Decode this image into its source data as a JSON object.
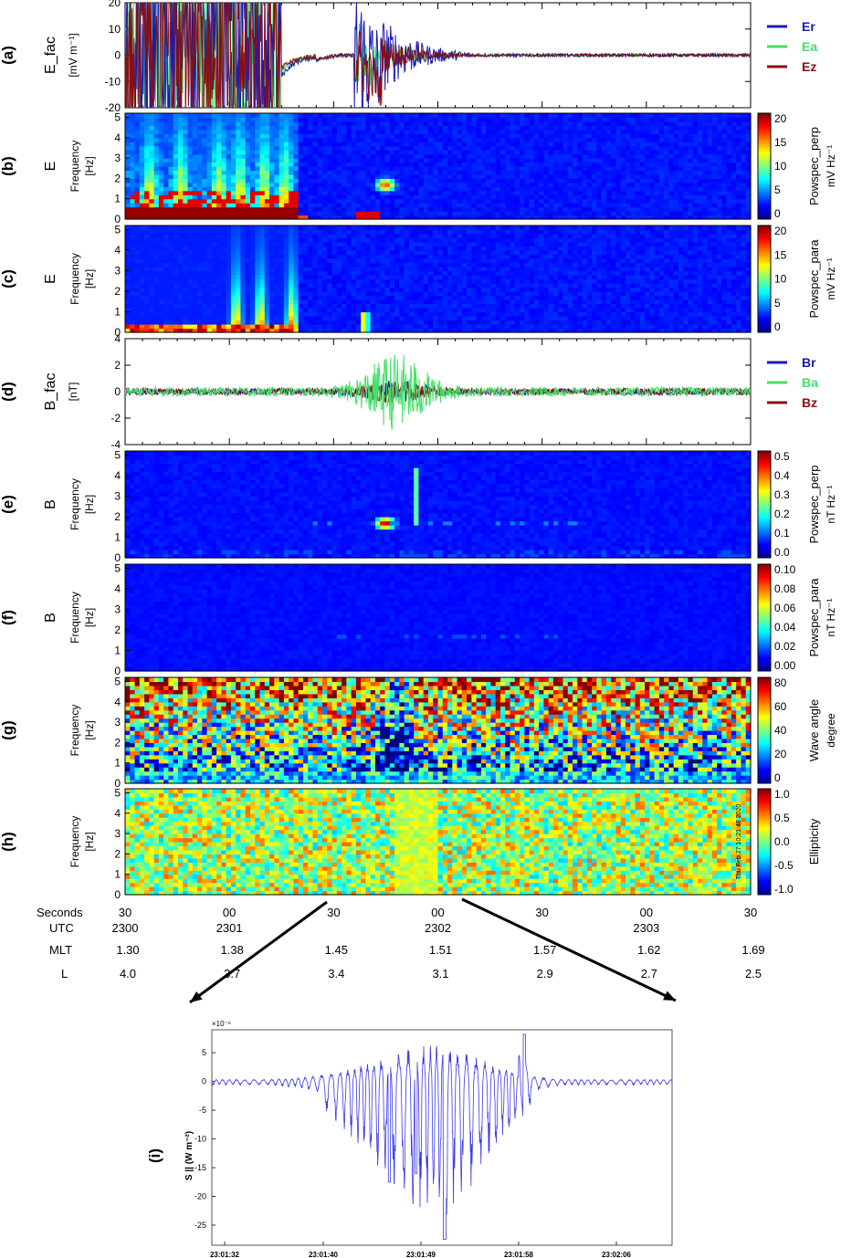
{
  "figure": {
    "panel_a": {
      "letter": "(a)",
      "ylabel": "E_fac",
      "yunit": "[mV m⁻¹]",
      "yticks": [
        "20",
        "10",
        "0",
        "-10",
        "-20"
      ],
      "ylim": [
        -20,
        20
      ],
      "legend": [
        {
          "name": "Er",
          "color": "#1a1ab4"
        },
        {
          "name": "Ea",
          "color": "#44e066"
        },
        {
          "name": "Ez",
          "color": "#8b0f0f"
        }
      ]
    },
    "panel_b": {
      "letter": "(b)",
      "ylabel": "E",
      "yunit": "Frequency\n[Hz]",
      "cb_label": "Powspec_perp",
      "cb_unit": "mV Hz⁻¹",
      "cb_ticks": [
        "20",
        "15",
        "10",
        "5",
        "0"
      ]
    },
    "panel_c": {
      "letter": "(c)",
      "ylabel": "E",
      "yunit": "Frequency\n[Hz]",
      "cb_label": "Powspec_para",
      "cb_unit": "mV Hz⁻¹",
      "cb_ticks": [
        "20",
        "15",
        "10",
        "5",
        "0"
      ]
    },
    "panel_d": {
      "letter": "(d)",
      "ylabel": "B_fac",
      "yunit": "[nT]",
      "yticks": [
        "4",
        "2",
        "0",
        "-2",
        "-4"
      ],
      "ylim": [
        -4,
        4
      ],
      "legend": [
        {
          "name": "Br",
          "color": "#1a1ab4"
        },
        {
          "name": "Ba",
          "color": "#44e066"
        },
        {
          "name": "Bz",
          "color": "#8b0f0f"
        }
      ]
    },
    "panel_e": {
      "letter": "(e)",
      "ylabel": "B",
      "yunit": "Frequency\n[Hz]",
      "cb_label": "Powspec_perp",
      "cb_unit": "nT Hz⁻¹",
      "cb_ticks": [
        "0.5",
        "0.4",
        "0.3",
        "0.2",
        "0.1",
        "0.0"
      ]
    },
    "panel_f": {
      "letter": "(f)",
      "ylabel": "B",
      "yunit": "Frequency\n[Hz]",
      "cb_label": "Powspec_para",
      "cb_unit": "nT Hz⁻¹",
      "cb_ticks": [
        "0.10",
        "0.08",
        "0.06",
        "0.04",
        "0.02",
        "0.00"
      ]
    },
    "panel_g": {
      "letter": "(g)",
      "yunit": "Frequency\n[Hz]",
      "cb_label": "Wave angle",
      "cb_unit": "degree",
      "cb_ticks": [
        "80",
        "60",
        "40",
        "20",
        "0"
      ]
    },
    "panel_h": {
      "letter": "(h)",
      "yunit": "Frequency\n[Hz]",
      "cb_label": "Ellipticity",
      "cb_ticks": [
        "1.0",
        "0.5",
        "0.0",
        "-0.5",
        "-1.0"
      ],
      "stamp": "Thu Feb 27 10:21:48 2020"
    },
    "freq_ticks": [
      "5",
      "4",
      "3",
      "2",
      "1",
      "0"
    ],
    "time_axis": {
      "row_labels": [
        "Seconds",
        "UTC",
        "MLT",
        "L"
      ],
      "seconds": [
        "30",
        "00",
        "30",
        "00",
        "30",
        "00",
        "30"
      ],
      "utc": [
        "2300",
        "2301",
        "",
        "2302",
        "",
        "2303",
        ""
      ],
      "mlt": [
        "1.30",
        "1.38",
        "1.45",
        "1.51",
        "1.57",
        "1.62",
        "1.69"
      ],
      "L": [
        "4.0",
        "3.7",
        "3.4",
        "3.1",
        "2.9",
        "2.7",
        "2.5"
      ]
    },
    "panel_i": {
      "letter": "(i)",
      "ylabel": "S",
      "ylabel_sub": "||",
      "yunit": "(W m⁻²)",
      "exponent": "×10⁻⁶",
      "yticks": [
        "5",
        "0",
        "-5",
        "-10",
        "-15",
        "-20",
        "-25"
      ],
      "xticks": [
        "23:01:32",
        "23:01:40",
        "23:01:49",
        "23:01:58",
        "23:02:06"
      ]
    }
  },
  "chart_data": [
    {
      "type": "line",
      "title": "",
      "ylabel": "E_fac [mV m^-1]",
      "ylim": [
        -20,
        20
      ],
      "series": [
        {
          "name": "Er",
          "peaks": [
            {
              "x_s": 53,
              "y": 16
            },
            {
              "x_s": 57,
              "y": -12
            }
          ]
        },
        {
          "name": "Ea"
        },
        {
          "name": "Ez",
          "peaks": [
            {
              "x_s": 49,
              "y": -15
            }
          ]
        }
      ],
      "x_range_s": [
        30,
        210
      ],
      "note_value": "large oscillations (±20) from 30 to 75 s"
    },
    {
      "type": "heatmap",
      "ylabel": "Frequency [Hz]",
      "ylim": [
        0,
        5
      ],
      "colorbar": "Powspec_perp (mV Hz^-1)",
      "clim": [
        0,
        20
      ]
    },
    {
      "type": "heatmap",
      "ylabel": "Frequency [Hz]",
      "ylim": [
        0,
        5
      ],
      "colorbar": "Powspec_para (mV Hz^-1)",
      "clim": [
        0,
        20
      ]
    },
    {
      "type": "line",
      "ylabel": "B_fac [nT]",
      "ylim": [
        -4,
        4
      ],
      "series": [
        {
          "name": "Br"
        },
        {
          "name": "Ba",
          "peak": 2.7,
          "trough": -3.0
        },
        {
          "name": "Bz"
        }
      ]
    },
    {
      "type": "heatmap",
      "ylabel": "Frequency [Hz]",
      "ylim": [
        0,
        5
      ],
      "colorbar": "Powspec_perp (nT Hz^-1)",
      "clim": [
        0,
        0.5
      ]
    },
    {
      "type": "heatmap",
      "ylabel": "Frequency [Hz]",
      "ylim": [
        0,
        5
      ],
      "colorbar": "Powspec_para (nT Hz^-1)",
      "clim": [
        0,
        0.1
      ]
    },
    {
      "type": "heatmap",
      "ylabel": "Frequency [Hz]",
      "ylim": [
        0,
        5
      ],
      "colorbar": "Wave angle (degree)",
      "clim": [
        0,
        90
      ]
    },
    {
      "type": "heatmap",
      "ylabel": "Frequency [Hz]",
      "ylim": [
        0,
        5
      ],
      "colorbar": "Ellipticity",
      "clim": [
        -1,
        1
      ]
    },
    {
      "type": "line",
      "ylabel": "S|| (W m^-2) x10^-6",
      "ylim": [
        -28,
        8
      ],
      "x": [
        "23:01:32",
        "23:01:40",
        "23:01:49",
        "23:01:58",
        "23:02:06"
      ],
      "extremes": [
        {
          "t": "23:01:51",
          "y": -27.5
        },
        {
          "t": "23:01:45",
          "y": -17.5
        },
        {
          "t": "23:01:58",
          "y": 8
        }
      ]
    }
  ]
}
